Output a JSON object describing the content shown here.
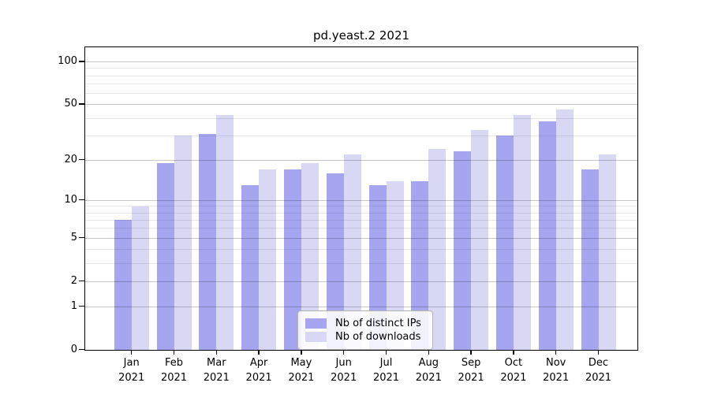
{
  "title": "pd.yeast.2 2021",
  "chart_data": {
    "type": "bar",
    "title": "pd.yeast.2 2021",
    "categories": [
      "Jan 2021",
      "Feb 2021",
      "Mar 2021",
      "Apr 2021",
      "May 2021",
      "Jun 2021",
      "Jul 2021",
      "Aug 2021",
      "Sep 2021",
      "Oct 2021",
      "Nov 2021",
      "Dec 2021"
    ],
    "series": [
      {
        "name": "Nb of distinct IPs",
        "color": "#a5a5f0",
        "values": [
          7,
          19,
          31,
          13,
          17,
          16,
          13,
          14,
          23,
          30,
          38,
          17
        ]
      },
      {
        "name": "Nb of downloads",
        "color": "#d8d8f5",
        "values": [
          9,
          30,
          42,
          17,
          19,
          22,
          14,
          24,
          33,
          42,
          46,
          22
        ]
      }
    ],
    "xlabel": "",
    "ylabel": "",
    "yscale": "log10(1+x)",
    "y_tick_values": [
      100,
      50,
      20,
      10,
      5,
      2,
      1,
      0
    ],
    "y_minor_gridlines": [
      3,
      4,
      6,
      7,
      8,
      9,
      30,
      40,
      60,
      70,
      80,
      90
    ],
    "ylim": [
      0,
      128
    ],
    "grid": true,
    "legend_position": "inside-bottom-center"
  },
  "legend": {
    "items": [
      {
        "label": "Nb of distinct IPs",
        "color": "#a5a5f0"
      },
      {
        "label": "Nb of downloads",
        "color": "#d8d8f5"
      }
    ]
  },
  "colors": {
    "background": "#ffffff",
    "spine": "#000000",
    "major_grid": "#c7c7c7",
    "minor_grid": "#e8e8e8"
  }
}
